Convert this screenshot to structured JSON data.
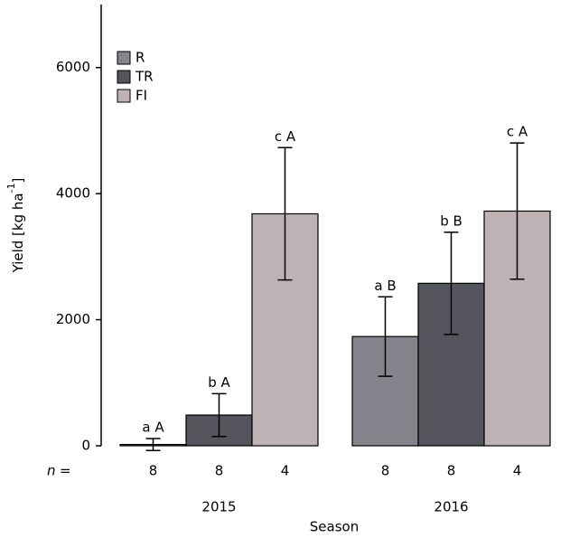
{
  "chart_data": {
    "type": "bar",
    "y_label": {
      "text": "Yield [kg ha",
      "superscript": "-1",
      "end": "]"
    },
    "x_label": "Season",
    "categories": [
      "2015",
      "2016"
    ],
    "series": [
      {
        "name": "R",
        "color": "#85848c",
        "values": [
          20,
          1733
        ],
        "errors": [
          95,
          630
        ],
        "value_labels": [
          "a A",
          "a B"
        ],
        "n": [
          8,
          8
        ]
      },
      {
        "name": "TR",
        "color": "#54545c",
        "values": [
          487,
          2577
        ],
        "errors": [
          340,
          810
        ],
        "value_labels": [
          "b A",
          "b B"
        ],
        "n": [
          8,
          8
        ]
      },
      {
        "name": "FI",
        "color": "#bfb2b4",
        "values": [
          3680,
          3723
        ],
        "errors": [
          1050,
          1080
        ],
        "value_labels": [
          "c A",
          "c A"
        ],
        "n": [
          4,
          4
        ]
      }
    ],
    "n_label": [
      "n",
      "="
    ],
    "ylim": [
      0,
      7000
    ],
    "yticks": [
      0,
      2000,
      4000,
      6000
    ],
    "legend": "top-left"
  }
}
